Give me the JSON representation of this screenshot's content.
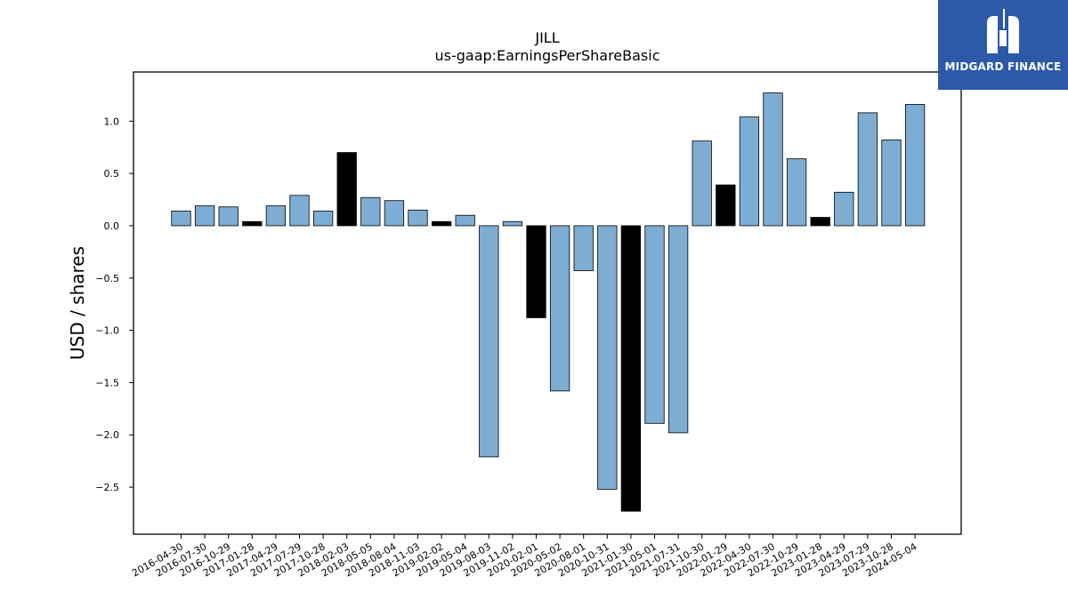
{
  "chart_data": {
    "type": "bar",
    "title": "JILL",
    "subtitle": "us-gaap:EarningsPerShareBasic",
    "xlabel": "",
    "ylabel": "USD / shares",
    "ylim": [
      -2.95,
      1.47
    ],
    "yticks": [
      1.0,
      0.5,
      0.0,
      -0.5,
      -1.0,
      -1.5,
      -2.0,
      -2.5
    ],
    "ytick_labels": [
      "1.0",
      "0.5",
      "0.0",
      "−0.5",
      "−1.0",
      "−1.5",
      "−2.0",
      "−2.5"
    ],
    "categories": [
      "2016-04-30",
      "2016-07-30",
      "2016-10-29",
      "2017-01-28",
      "2017-04-29",
      "2017-07-29",
      "2017-10-28",
      "2018-02-03",
      "2018-05-05",
      "2018-08-04",
      "2018-11-03",
      "2019-02-02",
      "2019-05-04",
      "2019-08-03",
      "2019-11-02",
      "2020-02-01",
      "2020-05-02",
      "2020-08-01",
      "2020-10-31",
      "2021-01-30",
      "2021-05-01",
      "2021-07-31",
      "2021-10-30",
      "2022-01-29",
      "2022-04-30",
      "2022-07-30",
      "2022-10-29",
      "2023-01-28",
      "2023-04-29",
      "2023-07-29",
      "2023-10-28",
      "2024-05-04"
    ],
    "values": [
      0.14,
      0.19,
      0.18,
      0.04,
      0.19,
      0.29,
      0.14,
      0.7,
      0.27,
      0.24,
      0.15,
      0.04,
      0.1,
      -2.21,
      0.04,
      -0.88,
      -1.58,
      -0.43,
      -2.52,
      -2.73,
      -1.89,
      -1.98,
      0.81,
      0.39,
      1.04,
      1.27,
      0.64,
      0.08,
      0.32,
      1.08,
      0.82,
      1.16
    ],
    "bar_kinds": [
      "quarter",
      "quarter",
      "quarter",
      "annual",
      "quarter",
      "quarter",
      "quarter",
      "annual",
      "quarter",
      "quarter",
      "quarter",
      "annual",
      "quarter",
      "quarter",
      "quarter",
      "annual",
      "quarter",
      "quarter",
      "quarter",
      "annual",
      "quarter",
      "quarter",
      "quarter",
      "annual",
      "quarter",
      "quarter",
      "quarter",
      "annual",
      "quarter",
      "quarter",
      "quarter",
      "quarter"
    ],
    "colors": {
      "quarter": "#7eadd3",
      "annual": "#000000",
      "edge": "#000000"
    },
    "grid": false
  },
  "logo": {
    "text": "MIDGARD FINANCE",
    "color": "#2c5aa8"
  }
}
